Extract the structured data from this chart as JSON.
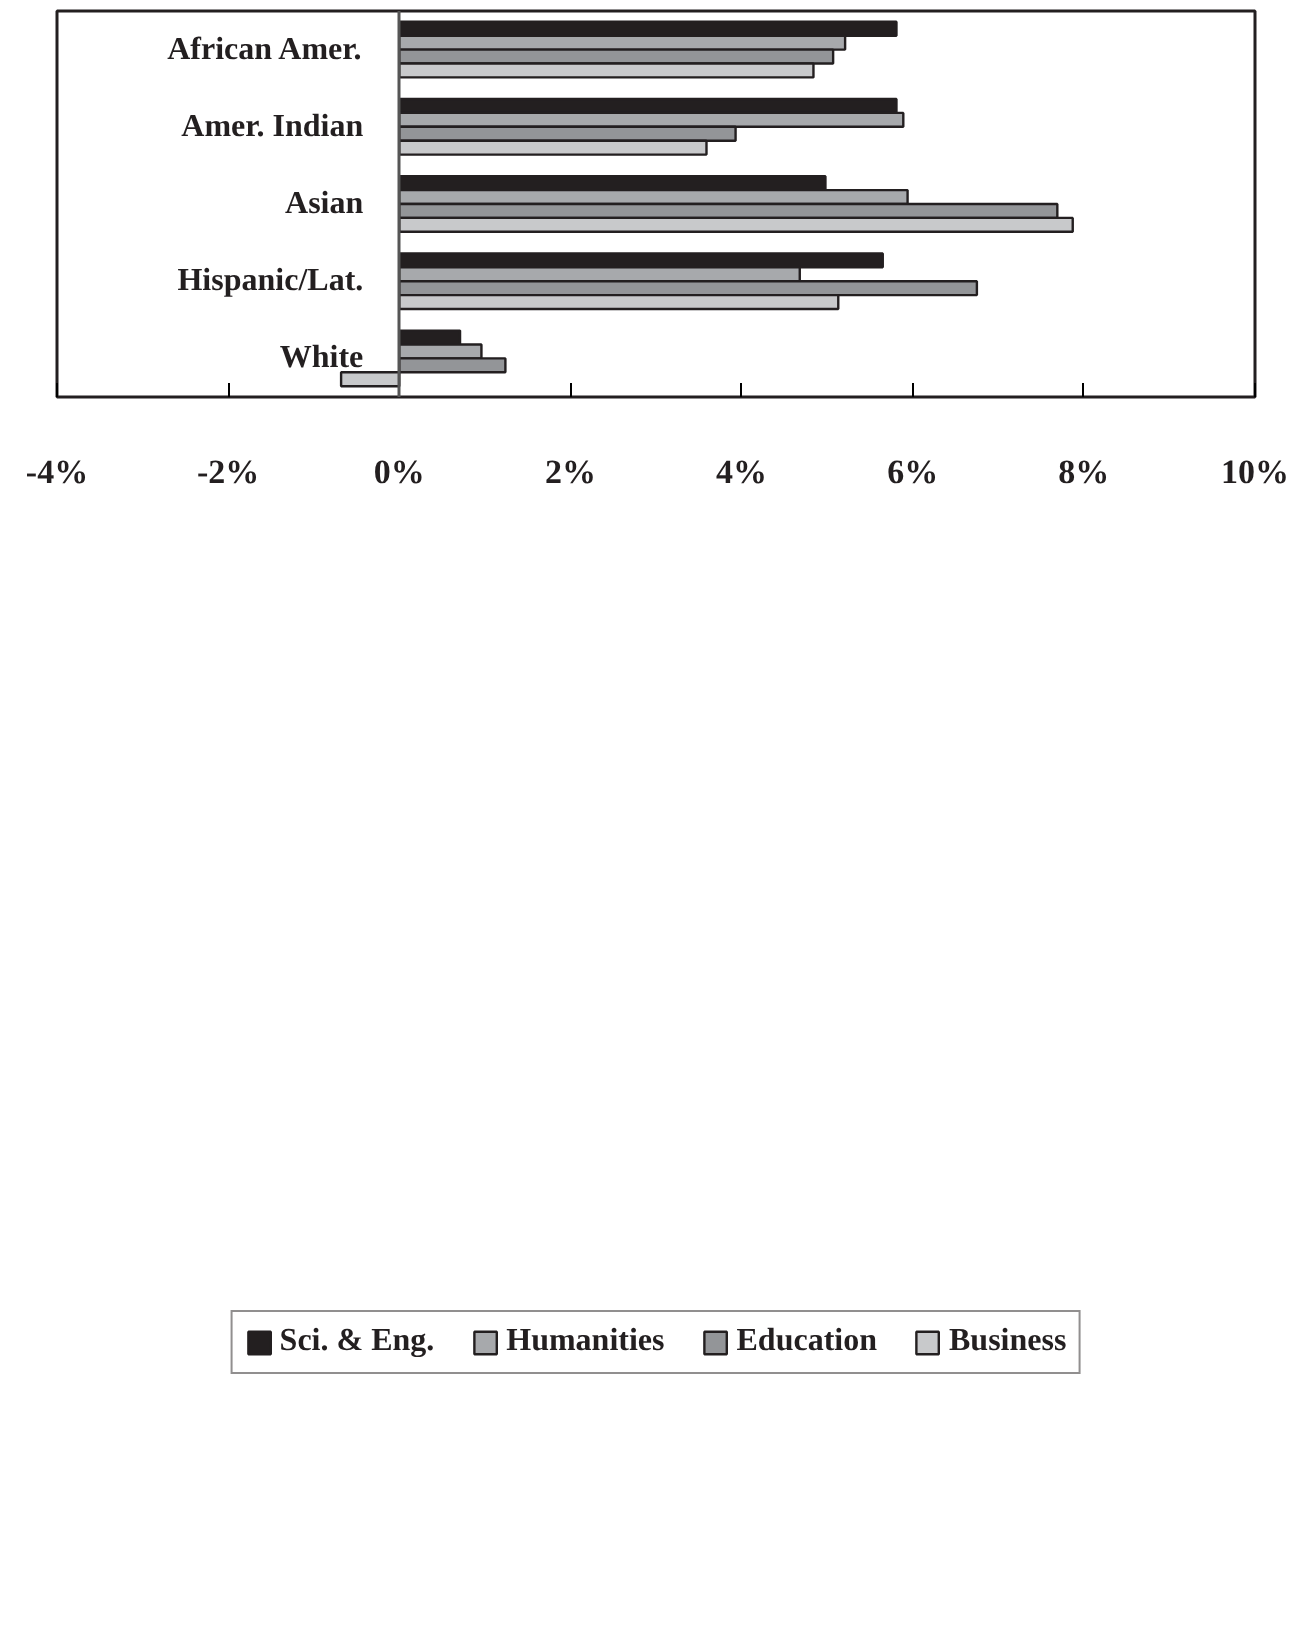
{
  "chart_data": {
    "type": "bar",
    "orientation": "horizontal",
    "categories": [
      "African Amer.",
      "Amer. Indian",
      "Asian",
      "Hispanic/Lat.",
      "White"
    ],
    "series": [
      {
        "name": "Sci. & Eng.",
        "color": "#231f20",
        "values": [
          5.81,
          5.81,
          4.98,
          5.65,
          0.71
        ]
      },
      {
        "name": "Humanities",
        "color": "#a7a9ac",
        "values": [
          5.21,
          5.89,
          5.94,
          4.68,
          0.96
        ]
      },
      {
        "name": "Education",
        "color": "#939598",
        "values": [
          5.07,
          3.93,
          7.69,
          6.75,
          1.24
        ]
      },
      {
        "name": "Business",
        "color": "#c8c9cb",
        "values": [
          4.84,
          3.59,
          7.87,
          5.13,
          -0.68
        ]
      }
    ],
    "xlim": [
      -4,
      10
    ],
    "xticks": [
      {
        "value": -4,
        "label": "-4%"
      },
      {
        "value": -2,
        "label": "-2%"
      },
      {
        "value": 0,
        "label": "0%"
      },
      {
        "value": 2,
        "label": "2%"
      },
      {
        "value": 4,
        "label": "4%"
      },
      {
        "value": 6,
        "label": "6%"
      },
      {
        "value": 8,
        "label": "8%"
      },
      {
        "value": 10,
        "label": "10%"
      }
    ],
    "grid": false,
    "legend": "bottom"
  }
}
